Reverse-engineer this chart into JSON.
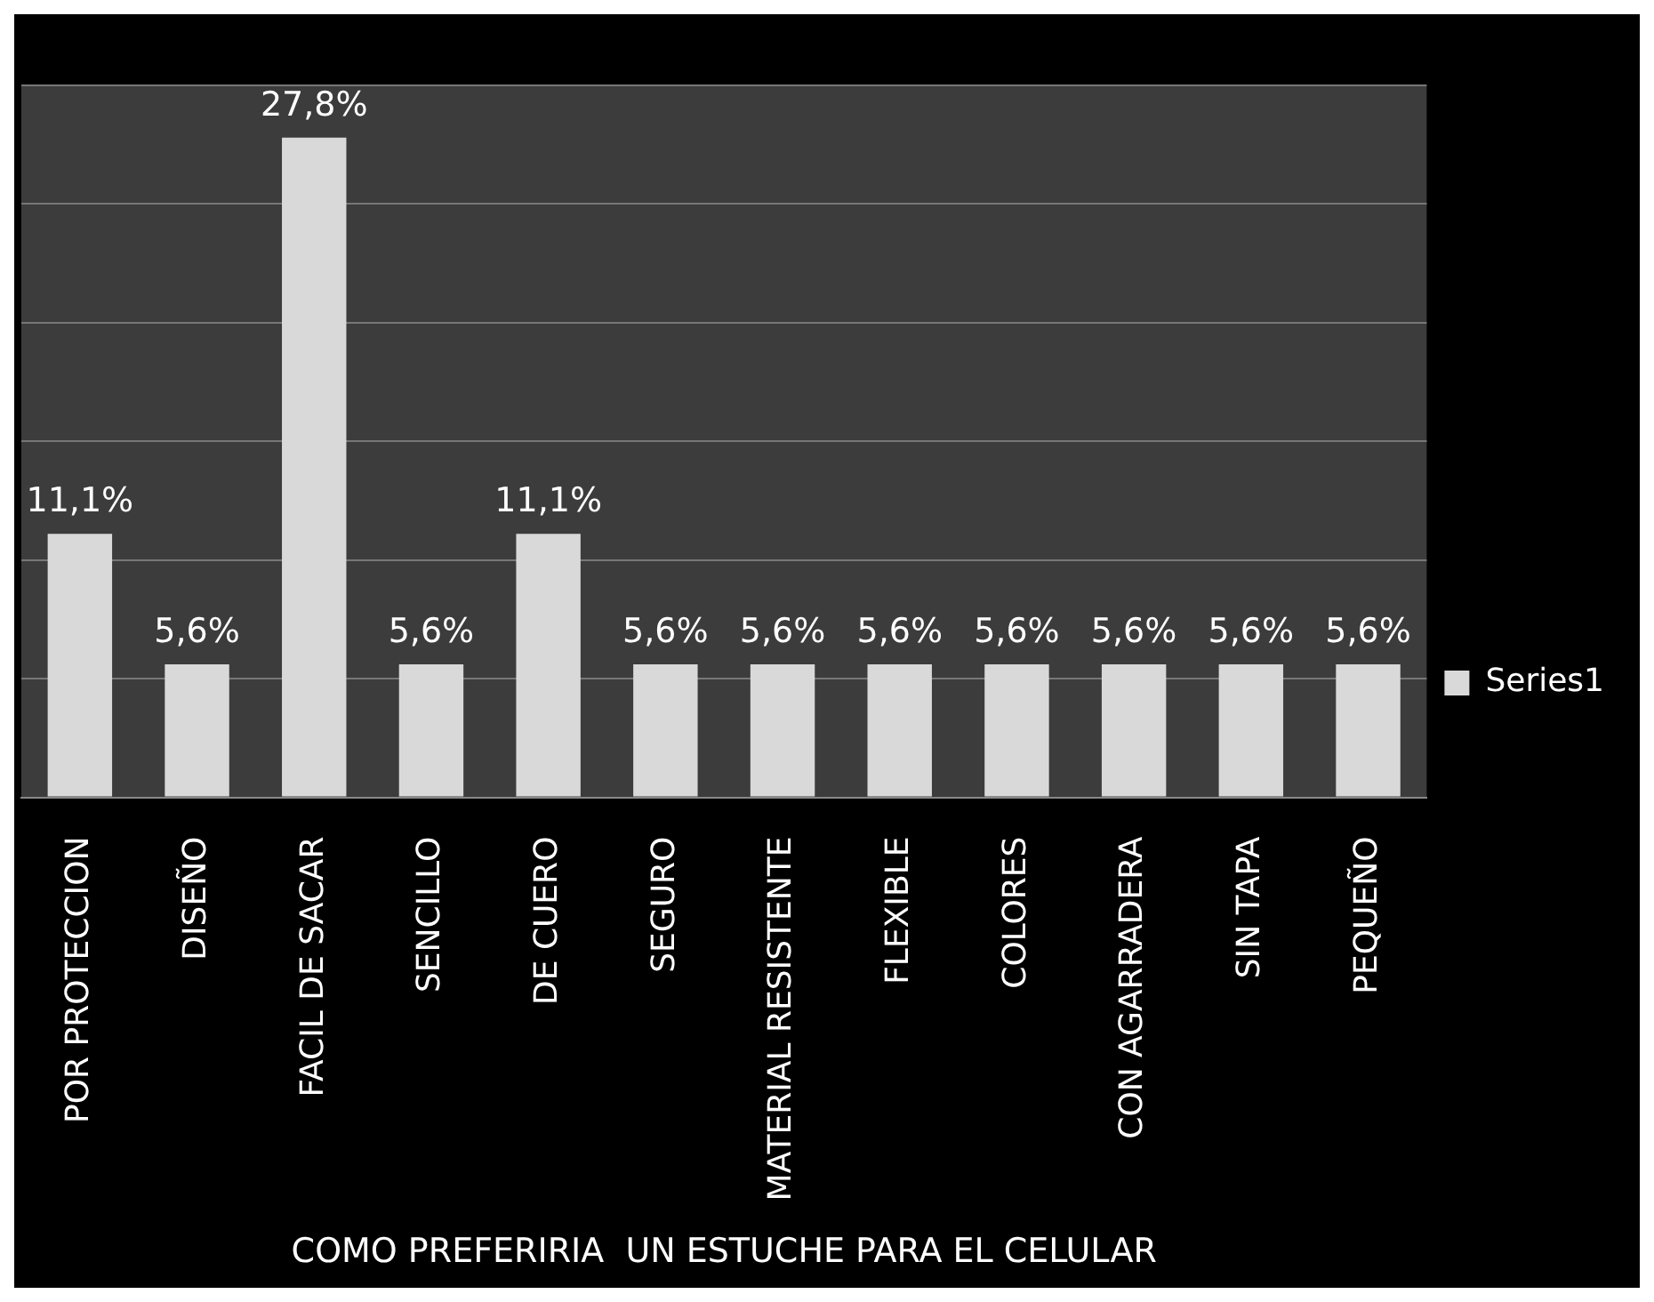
{
  "chart_data": {
    "type": "bar",
    "xlabel": "COMO PREFERIRIA  UN ESTUCHE PARA EL CELULAR",
    "categories": [
      "POR PROTECCION",
      "DISEÑO",
      "FACIL DE SACAR",
      "SENCILLO",
      "DE CUERO",
      "SEGURO",
      "MATERIAL RESISTENTE",
      "FLEXIBLE",
      "COLORES",
      "CON AGARRADERA",
      "SIN TAPA",
      "PEQUEÑO"
    ],
    "series": [
      {
        "name": "Series1",
        "color": "#d9d9d9",
        "values": [
          11.1,
          5.6,
          27.8,
          5.6,
          11.1,
          5.6,
          5.6,
          5.6,
          5.6,
          5.6,
          5.6,
          5.6
        ],
        "value_labels": [
          "11,1%",
          "5,6%",
          "27,8%",
          "5,6%",
          "11,1%",
          "5,6%",
          "5,6%",
          "5,6%",
          "5,6%",
          "5,6%",
          "5,6%",
          "5,6%"
        ]
      }
    ],
    "ylim": [
      0,
      30
    ],
    "yticks": [
      {
        "value": 0,
        "label": null
      },
      {
        "value": 5,
        "label": null
      },
      {
        "value": 10,
        "label": null
      },
      {
        "value": 15,
        "label": null
      },
      {
        "value": 20,
        "label": null
      },
      {
        "value": 25,
        "label": null
      },
      {
        "value": 30,
        "label": null
      }
    ],
    "grid": "y",
    "legend": "right",
    "tick_labels": "x"
  }
}
